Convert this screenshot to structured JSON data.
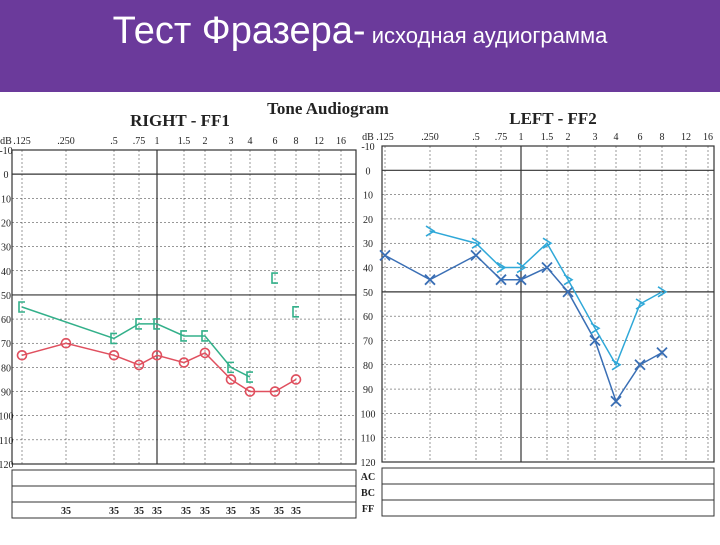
{
  "slide": {
    "title_main": "Тест Фразера-",
    "title_sub": " исходная аудиограмма"
  },
  "colors": {
    "header_bg": "#6b3a9b",
    "right_ac": "#e0505f",
    "right_bc": "#33b08a",
    "left_ac": "#3a6fb5",
    "left_bc": "#2fa8d8",
    "grid": "#333333"
  },
  "chart_data": [
    {
      "type": "line",
      "title": "Tone Audiogram",
      "panel_label": "RIGHT - FF1",
      "ylabel": "dB",
      "frequency_labels": [
        ".125",
        ".250",
        ".5",
        ".75",
        "1",
        "1.5",
        "2",
        "3",
        "4",
        "6",
        "8",
        "12",
        "16"
      ],
      "db_ticks": [
        "-10",
        "0",
        "10",
        "20",
        "30",
        "40",
        "50",
        "60",
        "70",
        "80",
        "90",
        "100",
        "110",
        "120"
      ],
      "ylim": [
        -10,
        120
      ],
      "row_labels": [
        "AC",
        "BC",
        "FF"
      ],
      "ff_values": [
        "35",
        "35",
        "35",
        "35",
        "35",
        "35",
        "35",
        "35",
        "35",
        "35"
      ],
      "series": [
        {
          "symbol": "circle",
          "color": "#e0505f",
          "points": [
            [
              0.125,
              75
            ],
            [
              0.25,
              70
            ],
            [
              0.5,
              75
            ],
            [
              0.75,
              79
            ],
            [
              1,
              75
            ],
            [
              1.5,
              78
            ],
            [
              2,
              74
            ],
            [
              3,
              85
            ],
            [
              4,
              90
            ],
            [
              6,
              90
            ],
            [
              8,
              85
            ]
          ]
        },
        {
          "symbol": "bracket",
          "color": "#33b08a",
          "points": [
            [
              0.125,
              55
            ],
            [
              0.5,
              68
            ],
            [
              0.75,
              62
            ],
            [
              1,
              62
            ],
            [
              1.5,
              67
            ],
            [
              2,
              67
            ],
            [
              3,
              80
            ],
            [
              4,
              84
            ]
          ]
        },
        {
          "symbol": "bracket",
          "color": "#33b08a",
          "points": [
            [
              6,
              43
            ],
            [
              8,
              57
            ]
          ],
          "connected": false
        }
      ]
    },
    {
      "type": "line",
      "panel_label": "LEFT - FF2",
      "ylabel": "dB",
      "frequency_labels": [
        ".125",
        ".250",
        ".5",
        ".75",
        "1",
        "1.5",
        "2",
        "3",
        "4",
        "6",
        "8",
        "12",
        "16"
      ],
      "db_ticks": [
        "-10",
        "0",
        "10",
        "20",
        "30",
        "40",
        "50",
        "60",
        "70",
        "80",
        "90",
        "100",
        "110",
        "120"
      ],
      "ylim": [
        -10,
        120
      ],
      "row_labels": [
        "AC",
        "BC",
        "FF"
      ],
      "series": [
        {
          "symbol": "x",
          "color": "#3a6fb5",
          "points": [
            [
              0.125,
              35
            ],
            [
              0.25,
              45
            ],
            [
              0.5,
              35
            ],
            [
              0.75,
              45
            ],
            [
              1,
              45
            ],
            [
              1.5,
              40
            ],
            [
              2,
              50
            ],
            [
              3,
              70
            ],
            [
              4,
              95
            ],
            [
              6,
              80
            ],
            [
              8,
              75
            ]
          ]
        },
        {
          "symbol": "chevron",
          "color": "#2fa8d8",
          "points": [
            [
              0.25,
              25
            ],
            [
              0.5,
              30
            ],
            [
              0.75,
              40
            ],
            [
              1,
              40
            ],
            [
              1.5,
              30
            ],
            [
              2,
              45
            ],
            [
              3,
              65
            ],
            [
              4,
              80
            ],
            [
              6,
              55
            ],
            [
              8,
              50
            ]
          ]
        }
      ]
    }
  ]
}
